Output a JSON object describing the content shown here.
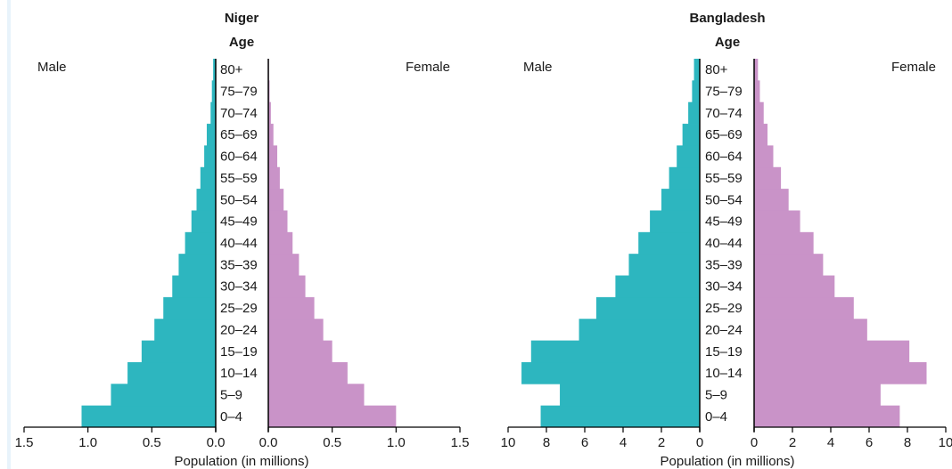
{
  "chart_data": [
    {
      "type": "bar",
      "title": "Niger",
      "age_axis_title": "Age",
      "male_label": "Male",
      "female_label": "Female",
      "xlabel": "Population (in millions)",
      "categories": [
        "0–4",
        "5–9",
        "10–14",
        "15–19",
        "20–24",
        "25–29",
        "30–34",
        "35–39",
        "40–44",
        "45–49",
        "50–54",
        "55–59",
        "60–64",
        "65–69",
        "70–74",
        "75–79",
        "80+"
      ],
      "series": [
        {
          "name": "Male",
          "values": [
            1.05,
            0.82,
            0.69,
            0.58,
            0.48,
            0.41,
            0.34,
            0.29,
            0.24,
            0.19,
            0.15,
            0.12,
            0.09,
            0.07,
            0.04,
            0.03,
            0.02
          ]
        },
        {
          "name": "Female",
          "values": [
            1.0,
            0.75,
            0.62,
            0.5,
            0.43,
            0.36,
            0.29,
            0.24,
            0.19,
            0.15,
            0.12,
            0.09,
            0.07,
            0.04,
            0.02,
            0.01,
            0.005
          ]
        }
      ],
      "xlim": [
        0,
        1.5
      ],
      "male_ticks": [
        "1.5",
        "1.0",
        "0.5",
        "0.0"
      ],
      "female_ticks": [
        "0.0",
        "0.5",
        "1.0",
        "1.5"
      ],
      "male_color": "#2db6bf",
      "female_color": "#c993c8"
    },
    {
      "type": "bar",
      "title": "Bangladesh",
      "age_axis_title": "Age",
      "male_label": "Male",
      "female_label": "Female",
      "xlabel": "Population (in millions)",
      "categories": [
        "0–4",
        "5–9",
        "10–14",
        "15–19",
        "20–24",
        "25–29",
        "30–34",
        "35–39",
        "40–44",
        "45–49",
        "50–54",
        "55–59",
        "60–64",
        "65–69",
        "70–74",
        "75–79",
        "80+"
      ],
      "series": [
        {
          "name": "Male",
          "values": [
            8.3,
            7.3,
            9.3,
            8.8,
            6.3,
            5.4,
            4.4,
            3.7,
            3.2,
            2.6,
            2.0,
            1.6,
            1.2,
            0.9,
            0.6,
            0.4,
            0.3
          ]
        },
        {
          "name": "Female",
          "values": [
            7.6,
            6.6,
            9.0,
            8.1,
            5.9,
            5.2,
            4.2,
            3.6,
            3.1,
            2.4,
            1.8,
            1.4,
            1.0,
            0.7,
            0.5,
            0.3,
            0.2
          ]
        }
      ],
      "xlim": [
        0,
        10
      ],
      "male_ticks": [
        "10",
        "8",
        "6",
        "4",
        "2",
        "0"
      ],
      "female_ticks": [
        "0",
        "2",
        "4",
        "6",
        "8",
        "10"
      ],
      "male_color": "#2db6bf",
      "female_color": "#c993c8"
    }
  ]
}
